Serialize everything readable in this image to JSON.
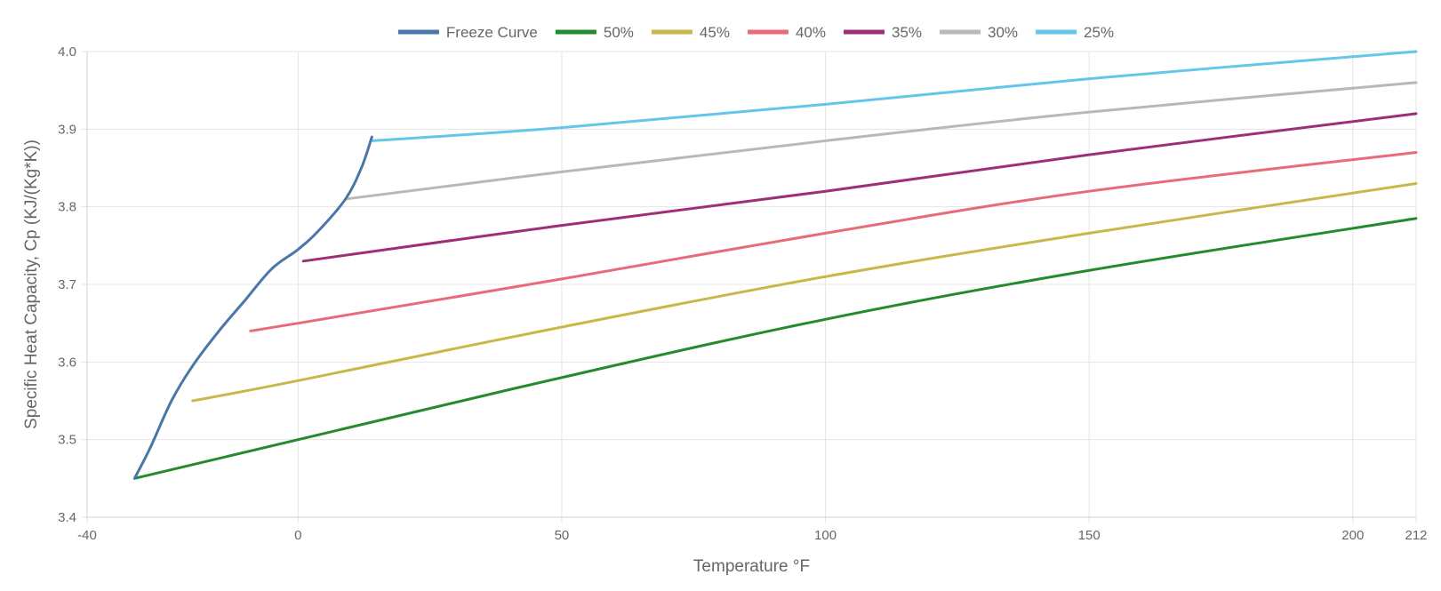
{
  "chart_data": {
    "type": "line",
    "title": "",
    "xlabel": "Temperature °F",
    "ylabel": "Specific Heat Capacity, Cp (KJ/(Kg*K))",
    "xlim": [
      -40,
      212
    ],
    "ylim": [
      3.4,
      4.0
    ],
    "x_ticks": [
      -40,
      0,
      50,
      100,
      150,
      200,
      212
    ],
    "x_tick_labels": [
      "-40",
      "0",
      "50",
      "100",
      "150",
      "200",
      "212"
    ],
    "y_ticks": [
      3.4,
      3.5,
      3.6,
      3.7,
      3.8,
      3.9,
      4.0
    ],
    "y_tick_labels": [
      "3.4",
      "3.5",
      "3.6",
      "3.7",
      "3.8",
      "3.9",
      "4.0"
    ],
    "grid": true,
    "legend_position": "top-center",
    "series": [
      {
        "name": "Freeze Curve",
        "color": "#4a76a8",
        "points": [
          [
            -31,
            3.45
          ],
          [
            -28,
            3.49
          ],
          [
            -24,
            3.55
          ],
          [
            -20,
            3.595
          ],
          [
            -15,
            3.64
          ],
          [
            -10,
            3.68
          ],
          [
            -5,
            3.72
          ],
          [
            0,
            3.745
          ],
          [
            4,
            3.77
          ],
          [
            9,
            3.81
          ],
          [
            12,
            3.85
          ],
          [
            14,
            3.89
          ]
        ]
      },
      {
        "name": "50%",
        "color": "#238a2e",
        "points": [
          [
            -31,
            3.45
          ],
          [
            0,
            3.5
          ],
          [
            50,
            3.58
          ],
          [
            100,
            3.655
          ],
          [
            150,
            3.718
          ],
          [
            212,
            3.785
          ]
        ]
      },
      {
        "name": "45%",
        "color": "#c8b84a",
        "points": [
          [
            -20,
            3.55
          ],
          [
            0,
            3.576
          ],
          [
            50,
            3.645
          ],
          [
            100,
            3.71
          ],
          [
            150,
            3.766
          ],
          [
            212,
            3.83
          ]
        ]
      },
      {
        "name": "40%",
        "color": "#e96a78",
        "points": [
          [
            -9,
            3.64
          ],
          [
            0,
            3.65
          ],
          [
            50,
            3.707
          ],
          [
            100,
            3.766
          ],
          [
            150,
            3.82
          ],
          [
            212,
            3.87
          ]
        ]
      },
      {
        "name": "35%",
        "color": "#9e2f77",
        "points": [
          [
            1,
            3.73
          ],
          [
            50,
            3.776
          ],
          [
            100,
            3.82
          ],
          [
            150,
            3.867
          ],
          [
            212,
            3.92
          ]
        ]
      },
      {
        "name": "30%",
        "color": "#b8b8b8",
        "points": [
          [
            9,
            3.81
          ],
          [
            50,
            3.845
          ],
          [
            100,
            3.885
          ],
          [
            150,
            3.922
          ],
          [
            212,
            3.96
          ]
        ]
      },
      {
        "name": "25%",
        "color": "#63c6ea",
        "points": [
          [
            14,
            3.885
          ],
          [
            50,
            3.902
          ],
          [
            100,
            3.932
          ],
          [
            150,
            3.965
          ],
          [
            212,
            4.0
          ]
        ]
      }
    ]
  }
}
